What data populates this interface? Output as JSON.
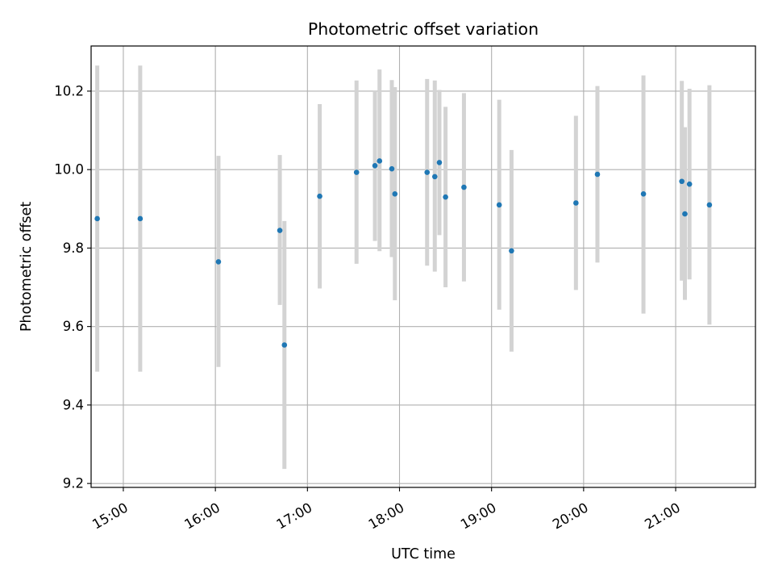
{
  "chart_data": {
    "type": "scatter",
    "title": "Photometric offset variation",
    "xlabel": "UTC time",
    "ylabel": "Photometric offset",
    "x_ticks": [
      "15:00",
      "16:00",
      "17:00",
      "18:00",
      "19:00",
      "20:00",
      "21:00"
    ],
    "y_ticks": [
      9.2,
      9.4,
      9.6,
      9.8,
      10.0,
      10.2
    ],
    "xlim": [
      "14:39",
      "21:52"
    ],
    "ylim": [
      9.19,
      10.315
    ],
    "grid": true,
    "colors": {
      "points": "#1f77b4",
      "error_bars": "#d3d3d3",
      "grid": "#b0b0b0"
    },
    "series": [
      {
        "points": [
          {
            "x": "14:43",
            "y": 9.875,
            "err_low": 9.485,
            "err_high": 10.265
          },
          {
            "x": "15:11",
            "y": 9.875,
            "err_low": 9.485,
            "err_high": 10.265
          },
          {
            "x": "16:02",
            "y": 9.765,
            "err_low": 9.497,
            "err_high": 10.035
          },
          {
            "x": "16:42",
            "y": 9.845,
            "err_low": 9.655,
            "err_high": 10.037
          },
          {
            "x": "16:45",
            "y": 9.553,
            "err_low": 9.237,
            "err_high": 9.869
          },
          {
            "x": "17:08",
            "y": 9.932,
            "err_low": 9.697,
            "err_high": 10.167
          },
          {
            "x": "17:32",
            "y": 9.993,
            "err_low": 9.76,
            "err_high": 10.227
          },
          {
            "x": "17:44",
            "y": 10.01,
            "err_low": 9.818,
            "err_high": 10.202
          },
          {
            "x": "17:47",
            "y": 10.022,
            "err_low": 9.792,
            "err_high": 10.255
          },
          {
            "x": "17:55",
            "y": 10.002,
            "err_low": 9.777,
            "err_high": 10.228
          },
          {
            "x": "17:57",
            "y": 9.938,
            "err_low": 9.667,
            "err_high": 10.21
          },
          {
            "x": "18:18",
            "y": 9.993,
            "err_low": 9.755,
            "err_high": 10.231
          },
          {
            "x": "18:23",
            "y": 9.982,
            "err_low": 9.74,
            "err_high": 10.227
          },
          {
            "x": "18:26",
            "y": 10.018,
            "err_low": 9.833,
            "err_high": 10.203
          },
          {
            "x": "18:30",
            "y": 9.93,
            "err_low": 9.7,
            "err_high": 10.16
          },
          {
            "x": "18:42",
            "y": 9.955,
            "err_low": 9.715,
            "err_high": 10.195
          },
          {
            "x": "19:05",
            "y": 9.91,
            "err_low": 9.643,
            "err_high": 10.178
          },
          {
            "x": "19:13",
            "y": 9.793,
            "err_low": 9.536,
            "err_high": 10.05
          },
          {
            "x": "19:55",
            "y": 9.915,
            "err_low": 9.693,
            "err_high": 10.137
          },
          {
            "x": "20:09",
            "y": 9.988,
            "err_low": 9.763,
            "err_high": 10.213
          },
          {
            "x": "20:39",
            "y": 9.938,
            "err_low": 9.633,
            "err_high": 10.24
          },
          {
            "x": "21:04",
            "y": 9.97,
            "err_low": 9.717,
            "err_high": 10.226
          },
          {
            "x": "21:06",
            "y": 9.887,
            "err_low": 9.668,
            "err_high": 10.108
          },
          {
            "x": "21:09",
            "y": 9.963,
            "err_low": 9.72,
            "err_high": 10.206
          },
          {
            "x": "21:22",
            "y": 9.91,
            "err_low": 9.605,
            "err_high": 10.215
          }
        ]
      }
    ]
  }
}
